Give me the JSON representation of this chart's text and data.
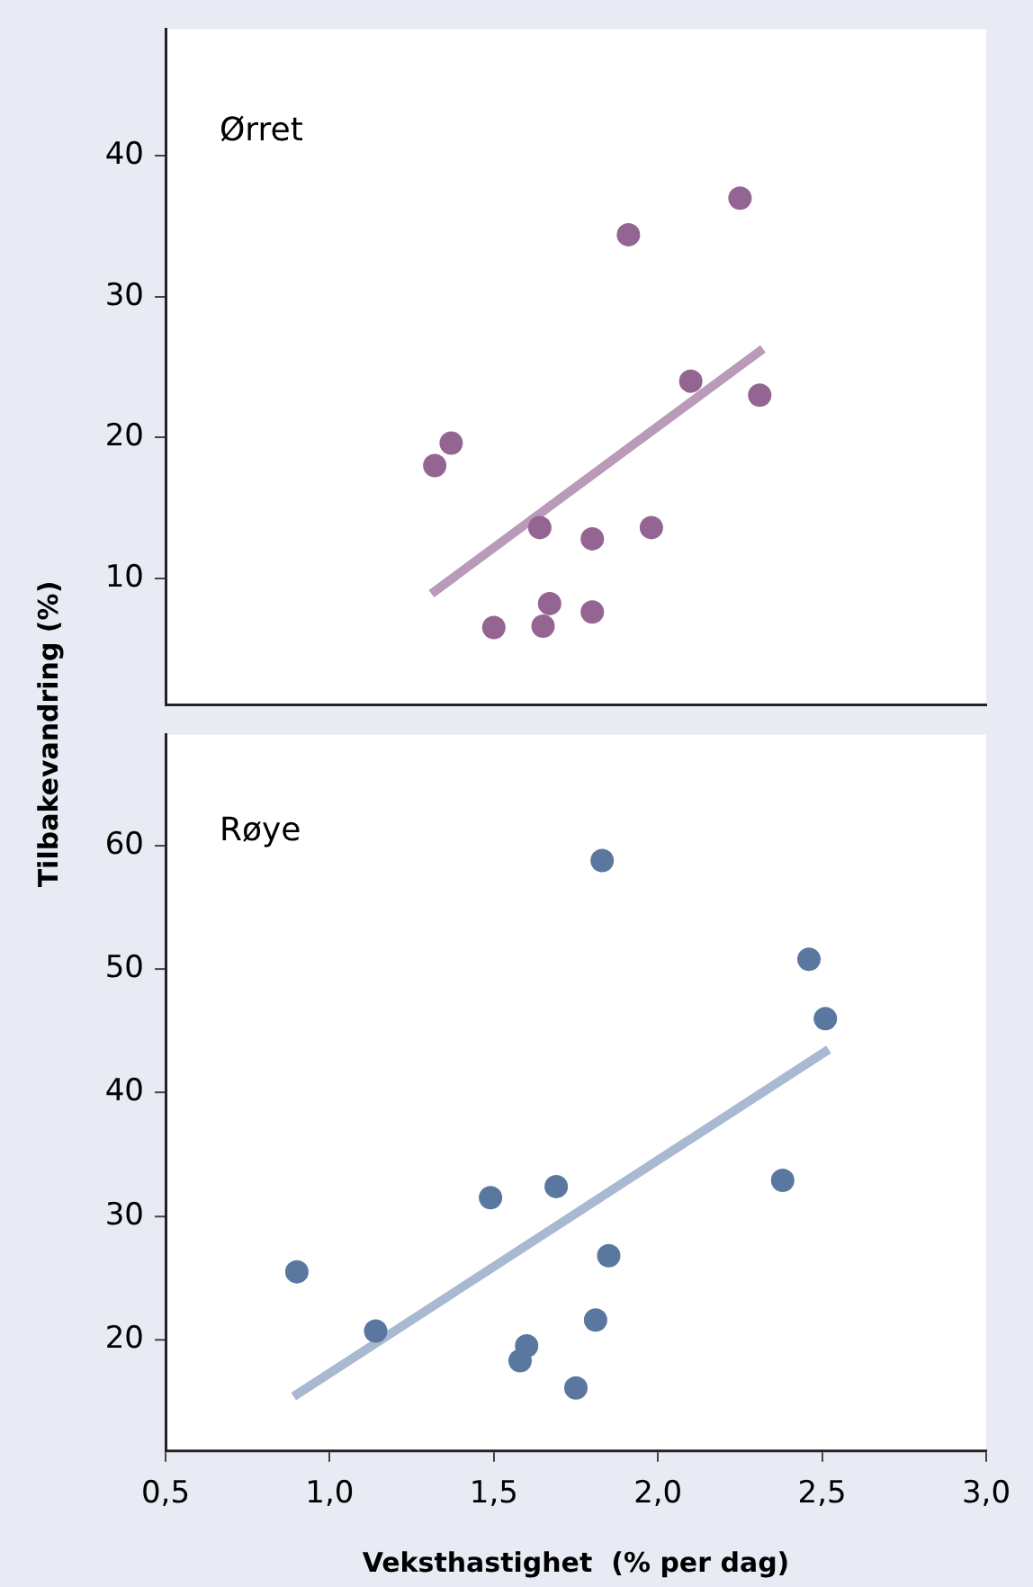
{
  "chart_data": [
    {
      "type": "scatter",
      "ylabel": "Tilbakevandring (%)",
      "xlim": [
        0.5,
        3.0
      ],
      "ylim": [
        1,
        49
      ],
      "yticks": [
        10,
        20,
        30,
        40
      ],
      "tick_labels": "y",
      "grid": false,
      "legend": false,
      "marker": "circle",
      "series": [
        {
          "name": "Ørret",
          "color": "#946593",
          "x": [
            2.25,
            1.91,
            2.1,
            2.31,
            1.37,
            1.32,
            1.64,
            1.8,
            1.98,
            1.67,
            1.8,
            1.5,
            1.65
          ],
          "values": [
            37.0,
            34.4,
            24.0,
            23.0,
            19.6,
            18.0,
            13.6,
            12.8,
            13.6,
            8.2,
            7.6,
            6.5,
            6.6
          ]
        },
        {
          "type": "line",
          "marker": "none",
          "color": "#b99ab8",
          "x": [
            1.31,
            2.32
          ],
          "values": [
            8.9,
            26.3
          ]
        }
      ]
    },
    {
      "type": "scatter",
      "xlabel": "Veksthastighet  (% per dag)",
      "xlim": [
        0.5,
        3.0
      ],
      "xticks": [
        {
          "value": 0.5,
          "label": "0,5"
        },
        {
          "value": 1.0,
          "label": "1,0"
        },
        {
          "value": 1.5,
          "label": "1,5"
        },
        {
          "value": 2.0,
          "label": "2,0"
        },
        {
          "value": 2.5,
          "label": "2,5"
        },
        {
          "value": 3.0,
          "label": "3,0"
        }
      ],
      "ylim": [
        11,
        69
      ],
      "yticks": [
        20,
        30,
        40,
        50,
        60
      ],
      "grid": false,
      "legend": false,
      "marker": "circle",
      "series": [
        {
          "name": "Røye",
          "color": "#5a789f",
          "x": [
            1.83,
            2.46,
            2.51,
            2.38,
            1.69,
            1.49,
            1.85,
            0.9,
            1.14,
            1.81,
            1.6,
            1.58,
            1.75
          ],
          "values": [
            58.8,
            50.8,
            46.0,
            32.9,
            32.4,
            31.5,
            26.8,
            25.5,
            20.7,
            21.6,
            19.5,
            18.3,
            16.1
          ]
        },
        {
          "type": "line",
          "marker": "none",
          "color": "#a9b9d1",
          "x": [
            0.89,
            2.52
          ],
          "values": [
            15.4,
            43.5
          ]
        }
      ]
    }
  ]
}
